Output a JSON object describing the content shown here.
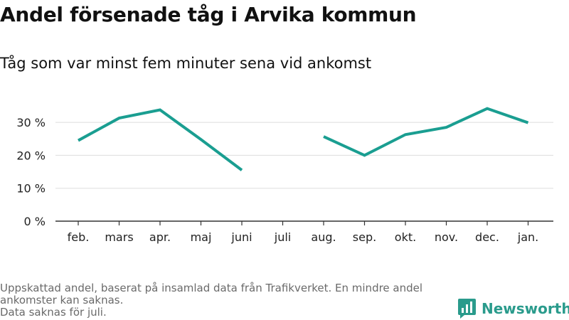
{
  "header": {
    "title": "Andel försenade tåg i Arvika kommun",
    "subtitle": "Tåg som var minst fem minuter sena vid ankomst"
  },
  "chart_data": {
    "type": "line",
    "categories": [
      "feb.",
      "mars",
      "apr.",
      "maj",
      "juni",
      "juli",
      "aug.",
      "sep.",
      "okt.",
      "nov.",
      "dec.",
      "jan."
    ],
    "series": [
      {
        "values": [
          24.5,
          31.3,
          33.8,
          24.8,
          15.5,
          null,
          25.7,
          20.0,
          26.3,
          28.5,
          34.2,
          29.9
        ]
      }
    ],
    "y_ticks": [
      0,
      10,
      20,
      30
    ],
    "y_tick_labels": [
      "0 %",
      "10 %",
      "20 %",
      "30 %"
    ],
    "ylim": [
      0,
      36
    ],
    "grid": true,
    "colors": {
      "line": "#1a9e91",
      "grid": "#dddddd",
      "axis": "#333333"
    }
  },
  "footnote": {
    "line1": "Uppskattad andel, baserat på insamlad data från Trafikverket. En mindre andel ankomster kan saknas.",
    "line2": "Data saknas för juli."
  },
  "logo": {
    "text": "Newsworthy",
    "color": "#2a9b8c"
  }
}
